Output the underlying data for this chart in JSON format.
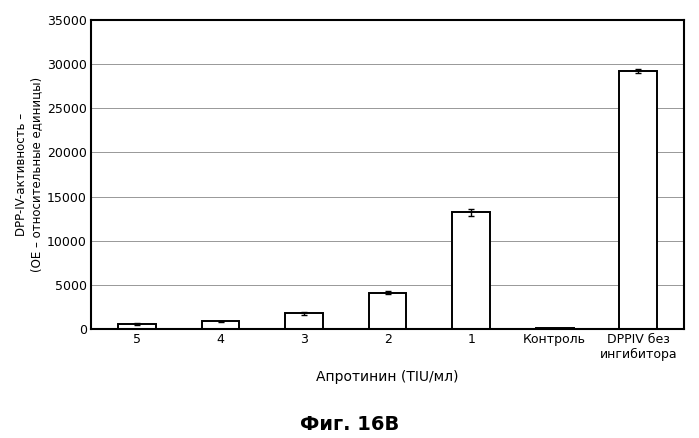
{
  "categories": [
    "5",
    "4",
    "3",
    "2",
    "1",
    "Контроль",
    "DPPIV без\nингибитора"
  ],
  "values": [
    550,
    850,
    1800,
    4100,
    13200,
    60,
    29200
  ],
  "errors": [
    80,
    80,
    160,
    160,
    350,
    15,
    250
  ],
  "bar_color": "#ffffff",
  "bar_edgecolor": "#000000",
  "ylabel": "DPP-IV-активность –\n(ОЕ – относительные единицы)",
  "xlabel": "Апротинин (TIU/мл)",
  "title": "Фиг. 16В",
  "ylim": [
    0,
    35000
  ],
  "yticks": [
    0,
    5000,
    10000,
    15000,
    20000,
    25000,
    30000,
    35000
  ],
  "ytick_labels": [
    "0",
    "5000",
    "10000",
    "15000",
    "20000",
    "25000",
    "30000",
    "35000"
  ],
  "background_color": "#ffffff",
  "bar_width": 0.45,
  "grid_color": "#888888",
  "grid_linewidth": 0.6,
  "spine_linewidth": 1.5,
  "ylabel_fontsize": 8.5,
  "xlabel_fontsize": 10,
  "tick_fontsize": 9,
  "title_fontsize": 14
}
